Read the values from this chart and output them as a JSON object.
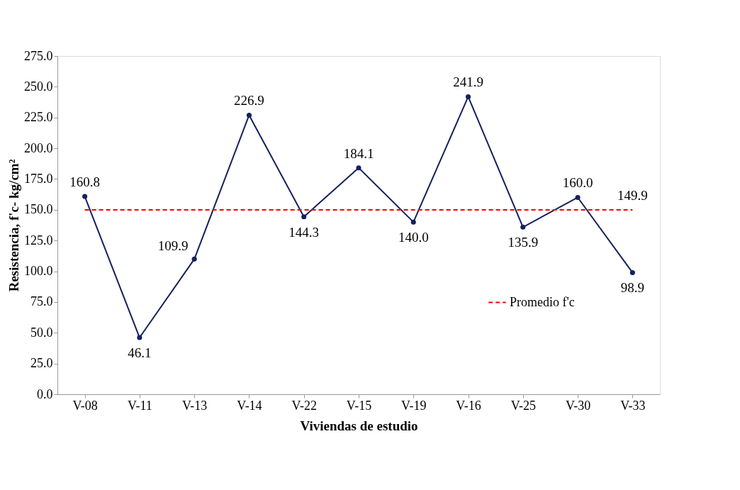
{
  "chart_data": {
    "type": "line",
    "xlabel": "Viviendas de estudio",
    "ylabel": "Resistencia, f'c- kg/cm²",
    "categories": [
      "V-08",
      "V-11",
      "V-13",
      "V-14",
      "V-22",
      "V-15",
      "V-19",
      "V-16",
      "V-25",
      "V-30",
      "V-33"
    ],
    "series": [
      {
        "color": "#14215b",
        "marker": "circle",
        "line_style": "solid",
        "values": [
          160.8,
          46.1,
          109.9,
          226.9,
          144.3,
          184.1,
          140.0,
          241.9,
          135.9,
          160.0,
          98.9
        ],
        "value_labels": [
          "160.8",
          "46.1",
          "109.9",
          "226.9",
          "144.3",
          "184.1",
          "140.0",
          "241.9",
          "135.9",
          "160.0",
          "98.9"
        ]
      },
      {
        "name": "Promedio f'c",
        "color": "#ff0000",
        "marker": "none",
        "line_style": "dashed",
        "values": [
          149.9,
          149.9,
          149.9,
          149.9,
          149.9,
          149.9,
          149.9,
          149.9,
          149.9,
          149.9,
          149.9
        ],
        "value_labels": [
          null,
          null,
          null,
          null,
          null,
          null,
          null,
          null,
          null,
          null,
          "149.9"
        ]
      }
    ],
    "ylim": [
      0,
      275
    ],
    "yticks": [
      {
        "value": 0,
        "label": "0.0"
      },
      {
        "value": 25,
        "label": "25.0"
      },
      {
        "value": 50,
        "label": "50.0"
      },
      {
        "value": 75,
        "label": "75.0"
      },
      {
        "value": 100,
        "label": "100.0"
      },
      {
        "value": 125,
        "label": "125.0"
      },
      {
        "value": 150,
        "label": "150.0"
      },
      {
        "value": 175,
        "label": "175.0"
      },
      {
        "value": 200,
        "label": "200.0"
      },
      {
        "value": 225,
        "label": "225.0"
      },
      {
        "value": 250,
        "label": "250.0"
      },
      {
        "value": 275,
        "label": "275.0"
      }
    ],
    "grid": false,
    "legend": "bottom right"
  }
}
